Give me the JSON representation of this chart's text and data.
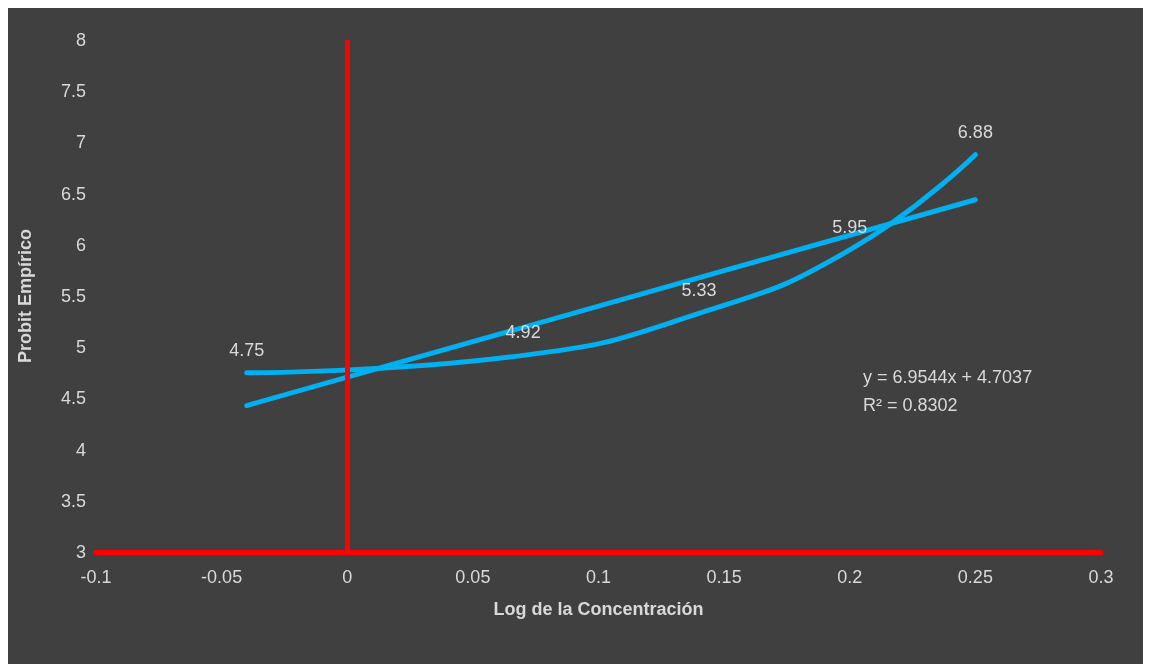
{
  "chart_data": {
    "type": "line",
    "xlabel": "Log de la Concentración",
    "ylabel": "Probit Empírico",
    "series": [
      {
        "color": "#00b0f0",
        "x": [
          -0.04,
          0.07,
          0.14,
          0.2,
          0.25
        ],
        "values": [
          4.75,
          4.92,
          5.33,
          5.95,
          6.88
        ],
        "value_labels": [
          "4.75",
          "4.92",
          "5.33",
          "5.95",
          "6.88"
        ]
      },
      {
        "color": "#00b0f0",
        "x": [
          -0.04,
          0.25
        ],
        "values": [
          4.43,
          6.44
        ]
      }
    ],
    "xlim": [
      -0.1,
      0.3
    ],
    "xticks": [
      -0.1,
      -0.05,
      0,
      0.05,
      0.1,
      0.15,
      0.2,
      0.25,
      0.3
    ],
    "ylim": [
      3,
      8
    ],
    "yticks": [
      3,
      3.5,
      4,
      4.5,
      5,
      5.5,
      6,
      6.5,
      7,
      7.5,
      8
    ],
    "ref_lines": [
      {
        "axis": "x",
        "value": 0,
        "color": "#ff0000"
      }
    ],
    "annotations": [
      "y = 6.9544x + 4.7037",
      "R² = 0.8302"
    ],
    "grid": false,
    "marker": "none"
  }
}
